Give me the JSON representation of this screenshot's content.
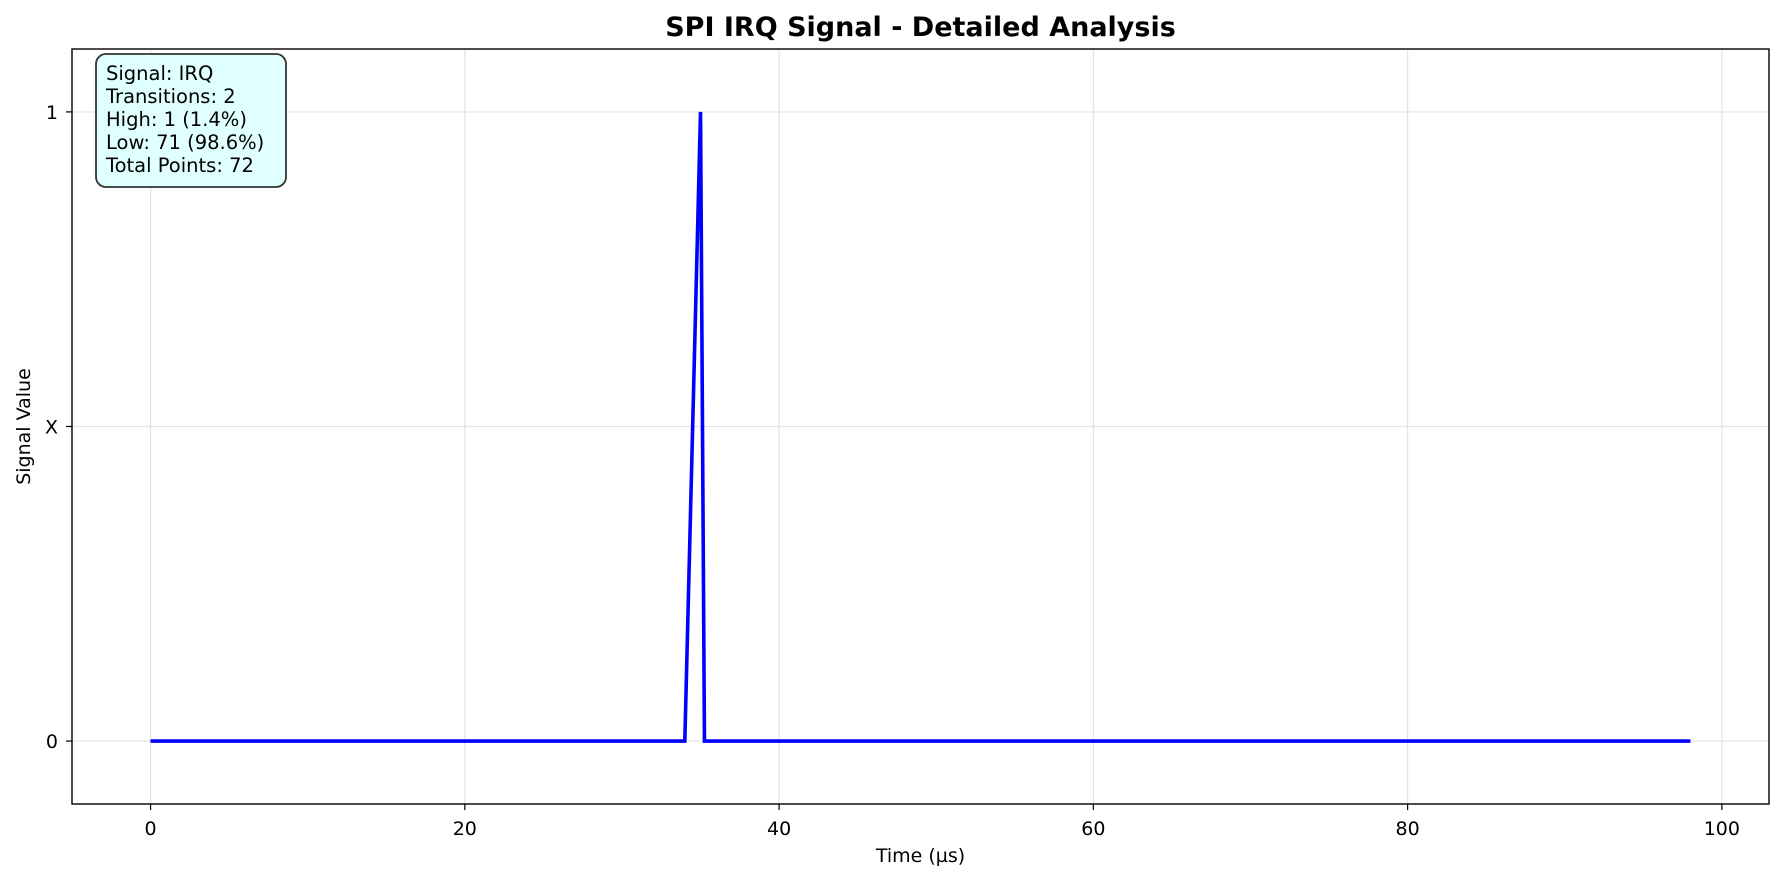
{
  "chart_data": {
    "type": "line",
    "title": "SPI IRQ Signal - Detailed Analysis",
    "xlabel": "Time (µs)",
    "ylabel": "Signal Value",
    "xlim": [
      -5,
      103
    ],
    "ylim": [
      -0.1,
      1.1
    ],
    "x_ticks": [
      {
        "value": 0,
        "label": "0"
      },
      {
        "value": 20,
        "label": "20"
      },
      {
        "value": 40,
        "label": "40"
      },
      {
        "value": 60,
        "label": "60"
      },
      {
        "value": 80,
        "label": "80"
      },
      {
        "value": 100,
        "label": "100"
      }
    ],
    "y_ticks": [
      {
        "value": 0,
        "label": "0"
      },
      {
        "value": 0.5,
        "label": "X"
      },
      {
        "value": 1,
        "label": "1"
      }
    ],
    "grid": true,
    "series": [
      {
        "color": "#0000ff",
        "x": [
          0,
          34,
          35,
          35.25,
          98
        ],
        "y": [
          0,
          0,
          1,
          0,
          0
        ]
      }
    ],
    "annotation": {
      "placement": "top-left",
      "background": "#e0ffff",
      "lines": [
        "Signal: IRQ",
        "Transitions: 2",
        "High: 1 (1.4%)",
        "Low: 71 (98.6%)",
        "Total Points: 72"
      ]
    }
  }
}
